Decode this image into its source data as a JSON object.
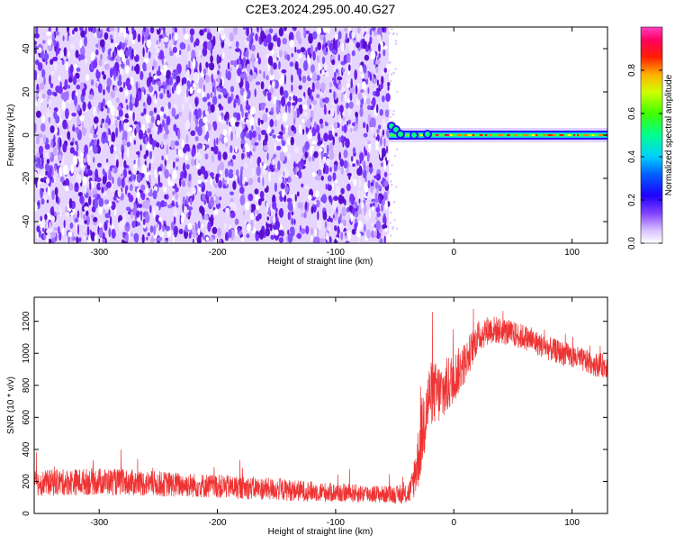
{
  "title": "C2E3.2024.295.00.40.G27",
  "colors": {
    "snr_line": "#ee3333",
    "spectrogram_base": "#6a1fe6"
  },
  "chart_data": [
    {
      "type": "heatmap",
      "name": "spectrogram",
      "xlabel": "Height of straight line (km)",
      "ylabel": "Frequency (Hz)",
      "xlim": [
        -355,
        130
      ],
      "ylim": [
        -50,
        50
      ],
      "xticks": [
        -300,
        -200,
        -100,
        0,
        100
      ],
      "xtick_labels": [
        "-300",
        "-200",
        "-100",
        "0",
        "100"
      ],
      "yticks": [
        -40,
        -20,
        0,
        20,
        40
      ],
      "ytick_labels": [
        "-40",
        "-20",
        "0",
        "20",
        "40"
      ],
      "noise_region_x": [
        -355,
        -55
      ],
      "signal_line_y": 0,
      "signal_start_x": -55,
      "colorbar": {
        "label": "Normalized spectral amplitude",
        "range": [
          0,
          1
        ],
        "ticks": [
          0.0,
          0.2,
          0.4,
          0.6,
          0.8
        ],
        "tick_labels": [
          "0.0",
          "0.2",
          "0.4",
          "0.6",
          "0.8"
        ],
        "colormap": [
          "#ffffff",
          "#b080ff",
          "#6a00ff",
          "#0000ff",
          "#00c8ff",
          "#00ff80",
          "#40ff00",
          "#ffff00",
          "#ff8000",
          "#ff0000",
          "#ff0090"
        ]
      },
      "grid": false
    },
    {
      "type": "line",
      "name": "snr",
      "xlabel": "Height of straight line (km)",
      "ylabel": "SNR (10 * v/v)",
      "xlim": [
        -355,
        130
      ],
      "ylim": [
        0,
        1350
      ],
      "xticks": [
        -300,
        -200,
        -100,
        0,
        100
      ],
      "xtick_labels": [
        "-300",
        "-200",
        "-100",
        "0",
        "100"
      ],
      "yticks": [
        0,
        200,
        400,
        600,
        800,
        1000,
        1200
      ],
      "ytick_labels": [
        "0",
        "200",
        "400",
        "600",
        "800",
        "1000",
        "1200"
      ],
      "envelope": {
        "x": [
          -355,
          -300,
          -250,
          -200,
          -150,
          -100,
          -60,
          -40,
          -36,
          -30,
          -25,
          -20,
          -10,
          0,
          10,
          20,
          30,
          40,
          60,
          80,
          100,
          120,
          130
        ],
        "mean": [
          190,
          200,
          185,
          170,
          150,
          130,
          120,
          115,
          150,
          350,
          600,
          750,
          750,
          850,
          950,
          1100,
          1150,
          1140,
          1100,
          1030,
          980,
          930,
          920
        ],
        "amp": [
          80,
          85,
          80,
          75,
          70,
          60,
          55,
          55,
          90,
          200,
          260,
          200,
          200,
          160,
          130,
          100,
          90,
          85,
          80,
          75,
          75,
          75,
          75
        ]
      },
      "grid": false
    }
  ]
}
